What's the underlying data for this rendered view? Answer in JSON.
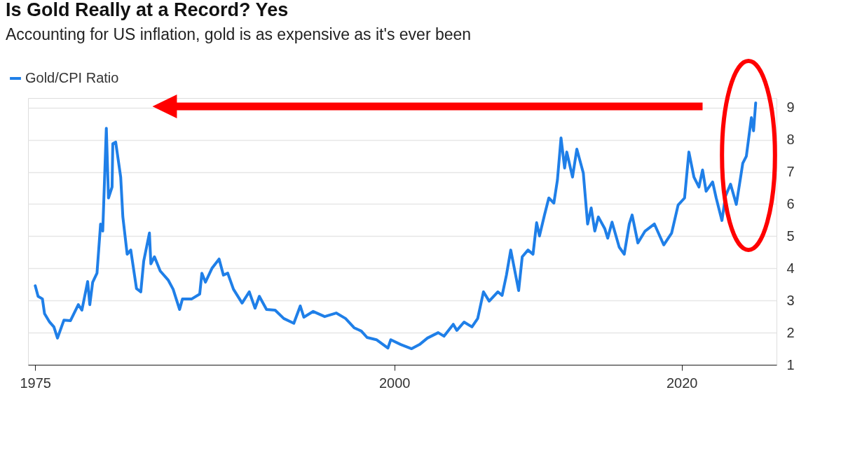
{
  "chart_data": {
    "type": "line",
    "title": "Is Gold Really at a Record? Yes",
    "subtitle": "Accounting for US inflation, gold is as expensive as it's ever been",
    "xlim": [
      1974.5,
      2026.6
    ],
    "xticks": [
      1975,
      2000,
      2020
    ],
    "ylim": [
      1,
      9.3
    ],
    "yticks": [
      1,
      2,
      3,
      4,
      5,
      6,
      7,
      8,
      9
    ],
    "grid": "y",
    "legend": "top left",
    "series": [
      {
        "name": "Gold/CPI Ratio",
        "color": "#1f7fe8",
        "x": [
          1975.0,
          1975.2,
          1975.5,
          1975.65,
          1976.0,
          1976.3,
          1976.55,
          1977.0,
          1977.45,
          1978.0,
          1978.25,
          1978.65,
          1978.8,
          1979.0,
          1979.3,
          1979.55,
          1979.7,
          1979.95,
          1980.1,
          1980.35,
          1980.4,
          1980.6,
          1980.95,
          1981.1,
          1981.4,
          1981.65,
          1982.05,
          1982.35,
          1982.55,
          1982.95,
          1983.05,
          1983.3,
          1983.7,
          1984.25,
          1984.6,
          1985.05,
          1985.25,
          1985.9,
          1986.45,
          1986.6,
          1986.85,
          1987.3,
          1987.8,
          1988.1,
          1988.4,
          1988.8,
          1989.4,
          1989.9,
          1990.3,
          1990.6,
          1991.1,
          1991.7,
          1992.3,
          1993.0,
          1993.45,
          1993.7,
          1994.35,
          1995.15,
          1995.95,
          1996.6,
          1997.2,
          1997.7,
          1998.1,
          1998.75,
          1999.55,
          1999.75,
          2000.45,
          2001.2,
          2001.75,
          2002.3,
          2003.05,
          2003.45,
          2004.1,
          2004.35,
          2004.85,
          2005.4,
          2005.8,
          2006.2,
          2006.6,
          2007.2,
          2007.5,
          2007.8,
          2008.1,
          2008.65,
          2008.9,
          2009.3,
          2009.65,
          2009.9,
          2010.1,
          2010.45,
          2010.75,
          2011.1,
          2011.35,
          2011.6,
          2011.85,
          2012.0,
          2012.4,
          2012.7,
          2013.15,
          2013.45,
          2013.7,
          2013.95,
          2014.2,
          2014.65,
          2014.85,
          2015.15,
          2015.65,
          2016.0,
          2016.35,
          2016.55,
          2016.95,
          2017.45,
          2018.1,
          2018.75,
          2019.3,
          2019.75,
          2020.2,
          2020.5,
          2020.85,
          2021.2,
          2021.45,
          2021.7,
          2022.15,
          2022.4,
          2022.8,
          2023.05,
          2023.4,
          2023.8,
          2024.05,
          2024.25,
          2024.5,
          2024.85,
          2025.0,
          2025.15
        ],
        "values": [
          3.46,
          3.13,
          3.05,
          2.59,
          2.33,
          2.18,
          1.83,
          2.39,
          2.37,
          2.87,
          2.7,
          3.59,
          2.87,
          3.57,
          3.85,
          5.38,
          5.16,
          8.36,
          6.19,
          6.53,
          7.88,
          7.93,
          6.84,
          5.6,
          4.44,
          4.57,
          3.37,
          3.27,
          4.22,
          5.1,
          4.14,
          4.36,
          3.92,
          3.64,
          3.35,
          2.72,
          3.05,
          3.05,
          3.2,
          3.85,
          3.57,
          4.0,
          4.29,
          3.79,
          3.85,
          3.35,
          2.92,
          3.27,
          2.76,
          3.13,
          2.72,
          2.7,
          2.44,
          2.29,
          2.83,
          2.48,
          2.66,
          2.5,
          2.61,
          2.44,
          2.15,
          2.05,
          1.85,
          1.78,
          1.52,
          1.78,
          1.63,
          1.5,
          1.63,
          1.83,
          2.0,
          1.89,
          2.26,
          2.07,
          2.33,
          2.18,
          2.44,
          3.27,
          2.98,
          3.27,
          3.16,
          3.79,
          4.57,
          3.31,
          4.36,
          4.57,
          4.44,
          5.42,
          5.01,
          5.66,
          6.19,
          6.03,
          6.75,
          8.06,
          7.12,
          7.62,
          6.84,
          7.71,
          6.97,
          5.38,
          5.88,
          5.16,
          5.6,
          5.23,
          4.94,
          5.44,
          4.66,
          4.44,
          5.38,
          5.66,
          4.79,
          5.16,
          5.38,
          4.73,
          5.1,
          5.97,
          6.19,
          7.62,
          6.84,
          6.53,
          7.06,
          6.4,
          6.69,
          6.19,
          5.49,
          6.25,
          6.62,
          5.99,
          6.69,
          7.27,
          7.49,
          8.69,
          8.28,
          9.15
        ]
      }
    ]
  }
}
